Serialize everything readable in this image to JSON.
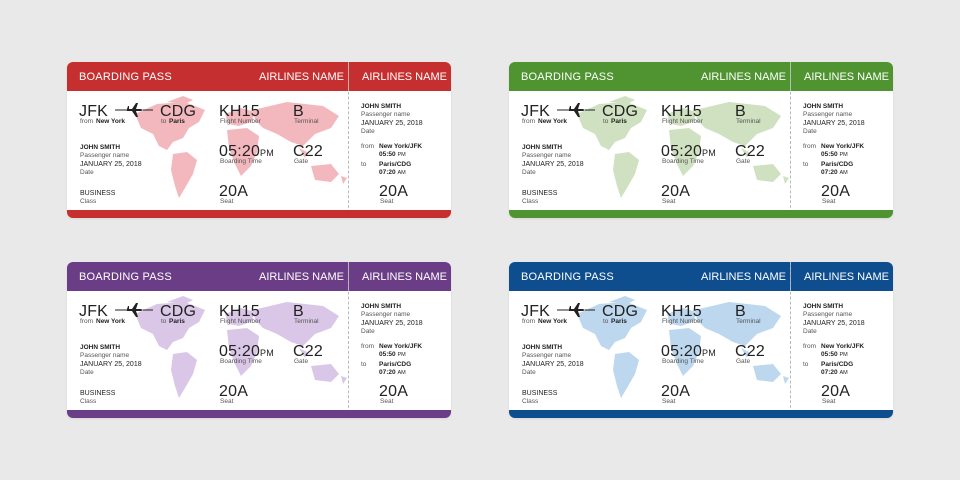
{
  "passes": [
    {
      "id": "red",
      "color": "#c62f2f",
      "map_color": "#f3b8bd"
    },
    {
      "id": "green",
      "color": "#4f9430",
      "map_color": "#cfe1c0"
    },
    {
      "id": "purple",
      "color": "#6b3d86",
      "map_color": "#dac6e6"
    },
    {
      "id": "blue",
      "color": "#0e4d8e",
      "map_color": "#bcd7ee"
    }
  ],
  "ticket": {
    "header": "BOARDING PASS",
    "airline": "AIRLINES NAME",
    "origin_code": "JFK",
    "from_prefix": "from",
    "origin_city": "New York",
    "dest_code": "CDG",
    "to_prefix": "to",
    "dest_city": "Paris",
    "flight_value": "KH15",
    "flight_label": "Flight Number",
    "terminal_value": "B",
    "terminal_label": "Terminal",
    "passenger_value": "JOHN SMITH",
    "passenger_label": "Passenger name",
    "date_value": "JANUARY 25, 2018",
    "date_label": "Date",
    "boarding_value": "05:20",
    "boarding_suffix": "PM",
    "boarding_label": "Boarding Time",
    "gate_value": "C22",
    "gate_label": "Gate",
    "class_value": "BUSINESS",
    "class_label": "Class",
    "seat_value": "20A",
    "seat_label": "Seat",
    "stub_from_label": "from",
    "stub_from_place": "New York/JFK",
    "stub_from_time": "05:50",
    "stub_from_suffix": "PM",
    "stub_to_label": "to",
    "stub_to_place": "Paris/CDG",
    "stub_to_time": "07:20",
    "stub_to_suffix": "AM"
  }
}
